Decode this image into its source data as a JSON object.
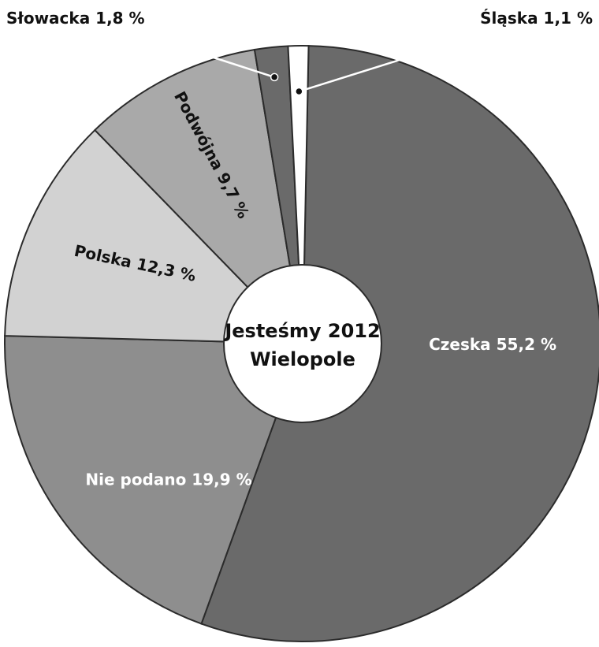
{
  "chart_data": {
    "type": "pie",
    "title": "Jesteśmy 2012",
    "subtitle": "Wielopole",
    "categories": [
      "Czeska",
      "Nie podano",
      "Polska",
      "Podwójna",
      "Słowacka",
      "Śląska"
    ],
    "values": [
      55.2,
      19.9,
      12.3,
      9.7,
      1.8,
      1.1
    ],
    "labels": [
      "Czeska 55,2 %",
      "Nie podano 19,9 %",
      "Polska 12,3 %",
      "Podwójna 9,7 %",
      "Słowacka 1,8 %",
      "Śląska 1,1 %"
    ],
    "colors": [
      "#6a6a6a",
      "#8e8e8e",
      "#d2d2d2",
      "#a9a9a9",
      "#6a6a6a",
      "#ffffff"
    ],
    "label_colors": [
      "#ffffff",
      "#ffffff",
      "#111111",
      "#111111",
      "#111111",
      "#111111"
    ],
    "grid": false,
    "legend": "none"
  }
}
